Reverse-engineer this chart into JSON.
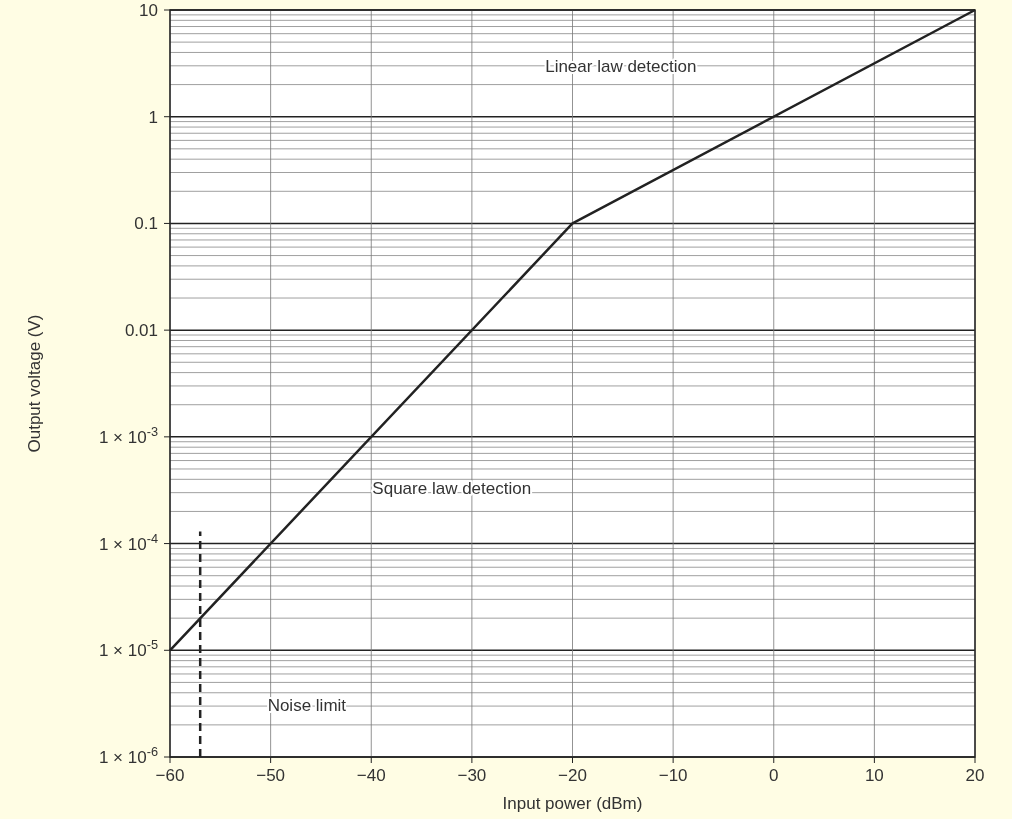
{
  "chart_data": {
    "type": "line",
    "xlabel": "Input power (dBm)",
    "ylabel": "Output voltage (V)",
    "log": "y",
    "grid": true,
    "marker": "none",
    "xlim": [
      -60,
      20
    ],
    "xticks": [
      -60,
      -50,
      -40,
      -30,
      -20,
      -10,
      0,
      10,
      20
    ],
    "ylim": [
      1e-06,
      10
    ],
    "yticks": [
      {
        "value": 1e-06,
        "label": "1 × 10$^{-6}$"
      },
      {
        "value": 1e-05,
        "label": "1 × 10$^{-5}$"
      },
      {
        "value": 0.0001,
        "label": "1 × 10$^{-4}$"
      },
      {
        "value": 0.001,
        "label": "1 × 10$^{-3}$"
      },
      {
        "value": 0.01,
        "label": "0.01"
      },
      {
        "value": 0.1,
        "label": "0.1"
      },
      {
        "value": 1,
        "label": "1"
      },
      {
        "value": 10,
        "label": "10"
      }
    ],
    "series": [
      {
        "color": "#222222",
        "x": [
          -60,
          -20,
          20
        ],
        "values": [
          1e-05,
          0.1,
          10
        ],
        "line_style": "solid"
      },
      {
        "color": "#222222",
        "x": [
          -57,
          -57
        ],
        "values": [
          1e-06,
          0.00013
        ],
        "line_style": "dashed"
      }
    ],
    "annotations": [
      "Linear law detection",
      "Square law detection",
      "Noise limit"
    ]
  }
}
